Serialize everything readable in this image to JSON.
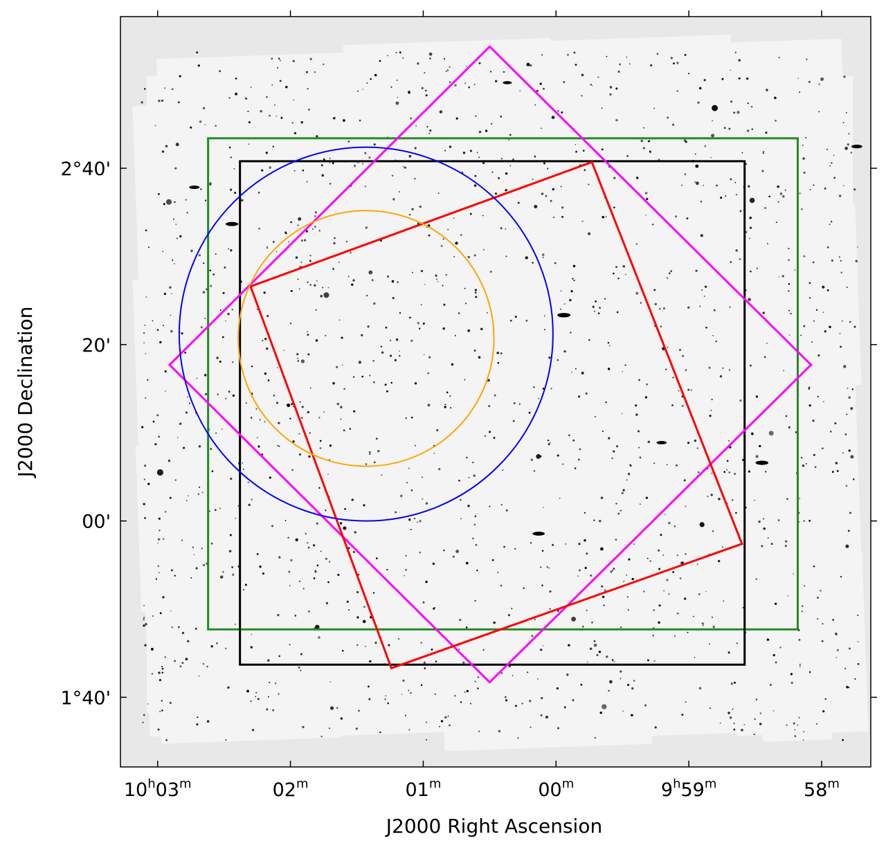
{
  "chart_data": {
    "type": "scatter",
    "description_visible": "sky image with field-of-view overlays",
    "xlabel": "J2000 Right Ascension",
    "ylabel": "J2000 Declination",
    "x_ticks": [
      {
        "ra_min": 603,
        "label_main": "10",
        "sup_h": "h",
        "label_min": "03",
        "sup_m": "m"
      },
      {
        "ra_min": 602,
        "label_main": "",
        "sup_h": "",
        "label_min": "02",
        "sup_m": "m"
      },
      {
        "ra_min": 601,
        "label_main": "",
        "sup_h": "",
        "label_min": "01",
        "sup_m": "m"
      },
      {
        "ra_min": 600,
        "label_main": "",
        "sup_h": "",
        "label_min": "00",
        "sup_m": "m"
      },
      {
        "ra_min": 599,
        "label_main": "9",
        "sup_h": "h",
        "label_min": "59",
        "sup_m": "m"
      },
      {
        "ra_min": 598,
        "label_main": "",
        "sup_h": "",
        "label_min": "58",
        "sup_m": "m"
      }
    ],
    "y_ticks": [
      {
        "dec_arcmin": 160,
        "label": "2°40'"
      },
      {
        "dec_arcmin": 140,
        "label": "20'"
      },
      {
        "dec_arcmin": 120,
        "label": "00'"
      },
      {
        "dec_arcmin": 100,
        "label": "1°40'"
      }
    ],
    "x_range_ra_min": [
      603.28,
      597.63
    ],
    "y_range_dec_arcmin": [
      92.1,
      177.2
    ],
    "grid": false,
    "colors": {
      "frame_background": "#e8e8e8",
      "sky_background": "#f4f4f4",
      "stars": "#000000"
    },
    "overlays": [
      {
        "name": "",
        "shape": "rectangle",
        "color": "#228b22",
        "ra_min": [
          602.62,
          598.18
        ],
        "dec_arcmin": [
          107.7,
          163.4
        ]
      },
      {
        "name": "",
        "shape": "rectangle",
        "color": "#000000",
        "ra_min": [
          602.38,
          598.58
        ],
        "dec_arcmin": [
          103.7,
          160.8
        ]
      },
      {
        "name": "",
        "shape": "polygon",
        "color": "#ff00ff",
        "points": [
          [
            600.5,
            173.8
          ],
          [
            598.08,
            137.7
          ],
          [
            600.5,
            101.7
          ],
          [
            602.91,
            137.7
          ]
        ]
      },
      {
        "name": "",
        "shape": "polygon",
        "color": "#ff0000",
        "points": [
          [
            599.73,
            160.7
          ],
          [
            598.6,
            117.4
          ],
          [
            601.24,
            103.3
          ],
          [
            602.3,
            146.6
          ]
        ]
      },
      {
        "name": "",
        "shape": "circle",
        "color": "#0000ff",
        "center": [
          601.43,
          141.2
        ],
        "radius_arcmin": 21.2
      },
      {
        "name": "",
        "shape": "circle",
        "color": "#ffa500",
        "center": [
          601.43,
          140.7
        ],
        "radius_arcmin": 14.5
      }
    ]
  }
}
